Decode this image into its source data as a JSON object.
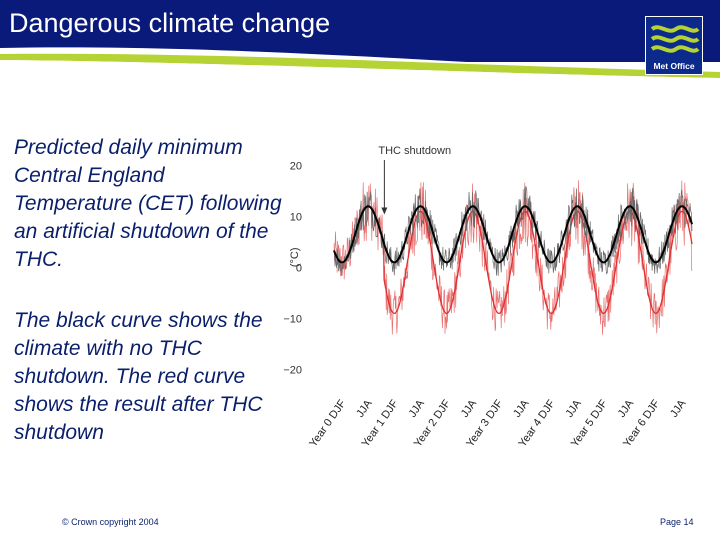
{
  "header": {
    "title": "Dangerous climate change",
    "logo_text": "Met Office",
    "colors": {
      "banner": "#0a1a7a",
      "swoosh": "#b5d334",
      "text": "#0a1f6b"
    }
  },
  "description": {
    "paragraph1": "Predicted daily minimum Central England Temperature (CET) following an artificial shutdown of the THC.",
    "paragraph2": "The black curve shows the climate with no THC shutdown. The red curve shows the result after THC shutdown"
  },
  "chart_data": {
    "type": "line",
    "title": "",
    "xlabel": "",
    "ylabel": "(°C)",
    "ylim": [
      -25,
      25
    ],
    "yticks": [
      20,
      10,
      0,
      -10,
      -20
    ],
    "categories": [
      "Year 0 DJF",
      "JJA",
      "Year 1 DJF",
      "JJA",
      "Year 2 DJF",
      "JJA",
      "Year 3 DJF",
      "JJA",
      "Year 4 DJF",
      "JJA",
      "Year 5 DJF",
      "JJA",
      "Year 6 DJF",
      "JJA"
    ],
    "annotation": "THC shutdown",
    "annotation_at": 0.9,
    "series": [
      {
        "name": "No THC shutdown",
        "color": "#000000",
        "mean": 6.5,
        "amplitude": 5.5,
        "noise": 2.8,
        "first_winter": 0,
        "values_at_ticks": [
          1,
          12,
          1,
          12,
          1,
          12,
          1,
          12,
          1,
          12,
          1,
          12,
          1,
          12
        ]
      },
      {
        "name": "After THC shutdown",
        "color": "#e03030",
        "mean": 1,
        "amplitude": 10,
        "noise": 4.5,
        "first_winter": 0,
        "values_at_ticks": [
          1,
          12,
          -9,
          11,
          -9,
          11,
          -9,
          11,
          -9,
          11,
          -9,
          11,
          -9,
          11
        ]
      }
    ]
  },
  "footer": {
    "copyright": "© Crown copyright 2004",
    "page": "Page 14"
  }
}
